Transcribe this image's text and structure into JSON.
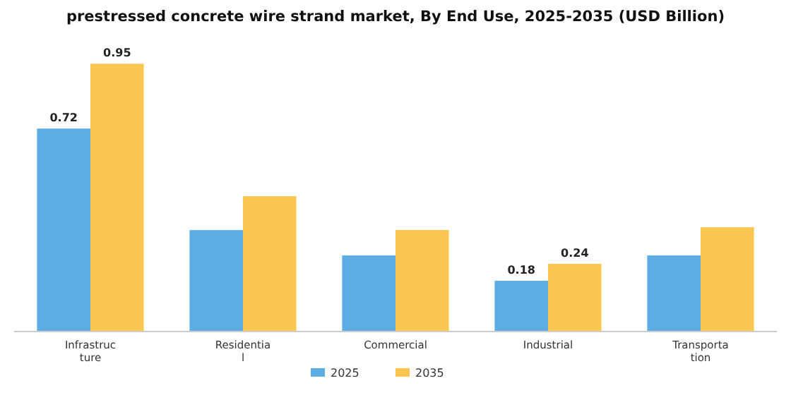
{
  "chart_data": {
    "type": "bar",
    "title": "prestressed concrete wire strand market, By End Use, 2025-2035 (USD Billion)",
    "categories": [
      "Infrastructure",
      "Residential",
      "Commercial",
      "Industrial",
      "Transportation"
    ],
    "series": [
      {
        "name": "2025",
        "color": "#5dade2",
        "values": [
          0.72,
          0.36,
          0.27,
          0.18,
          0.27
        ],
        "value_labels": [
          "0.72",
          null,
          null,
          "0.18",
          null
        ]
      },
      {
        "name": "2035",
        "color": "#f9c74f",
        "values": [
          0.95,
          0.48,
          0.36,
          0.24,
          0.37
        ],
        "value_labels": [
          "0.95",
          null,
          null,
          "0.24",
          null
        ]
      }
    ],
    "legend": "bottom",
    "grid": false
  }
}
